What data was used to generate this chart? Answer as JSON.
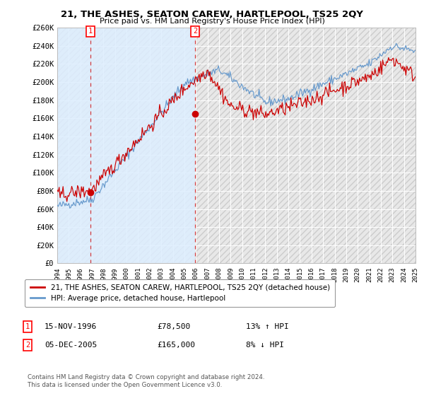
{
  "title": "21, THE ASHES, SEATON CAREW, HARTLEPOOL, TS25 2QY",
  "subtitle": "Price paid vs. HM Land Registry's House Price Index (HPI)",
  "legend_line1": "21, THE ASHES, SEATON CAREW, HARTLEPOOL, TS25 2QY (detached house)",
  "legend_line2": "HPI: Average price, detached house, Hartlepool",
  "annotation1_date": "15-NOV-1996",
  "annotation1_price": "£78,500",
  "annotation1_hpi": "13% ↑ HPI",
  "annotation2_date": "05-DEC-2005",
  "annotation2_price": "£165,000",
  "annotation2_hpi": "8% ↓ HPI",
  "footer": "Contains HM Land Registry data © Crown copyright and database right 2024.\nThis data is licensed under the Open Government Licence v3.0.",
  "sale1_x": 1996.88,
  "sale1_y": 78500,
  "sale2_x": 2005.92,
  "sale2_y": 165000,
  "xmin": 1994,
  "xmax": 2025,
  "ymin": 0,
  "ymax": 260000,
  "yticks": [
    0,
    20000,
    40000,
    60000,
    80000,
    100000,
    120000,
    140000,
    160000,
    180000,
    200000,
    220000,
    240000,
    260000
  ],
  "xticks": [
    1994,
    1995,
    1996,
    1997,
    1998,
    1999,
    2000,
    2001,
    2002,
    2003,
    2004,
    2005,
    2006,
    2007,
    2008,
    2009,
    2010,
    2011,
    2012,
    2013,
    2014,
    2015,
    2016,
    2017,
    2018,
    2019,
    2020,
    2021,
    2022,
    2023,
    2024,
    2025
  ],
  "red_color": "#cc0000",
  "blue_color": "#6699cc",
  "blue_fill_color": "#ddeeff",
  "plot_bg_color": "#e8e8e8",
  "hatch_color": "#cccccc",
  "grid_color": "#ffffff"
}
